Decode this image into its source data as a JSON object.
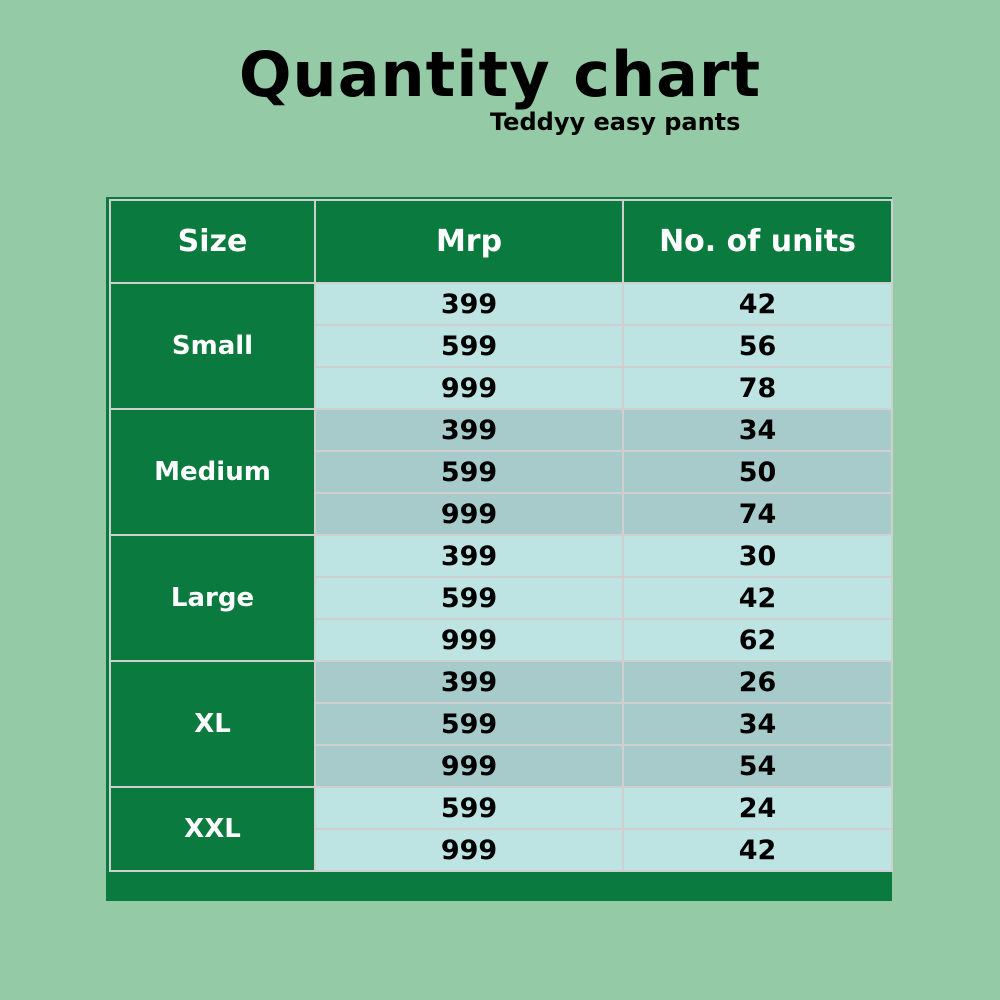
{
  "title": "Quantity chart",
  "subtitle": "Teddyy easy pants",
  "colors": {
    "background": "#94cba6",
    "header": "#0a7a3e",
    "row_light": "#bde3e2",
    "row_dark": "#a7cbca"
  },
  "chart_data": {
    "type": "table",
    "title": "Quantity chart",
    "subtitle": "Teddyy easy pants",
    "columns": [
      "Size",
      "Mrp",
      "No. of units"
    ],
    "groups": [
      {
        "size": "Small",
        "rows": [
          {
            "mrp": "399",
            "units": "42"
          },
          {
            "mrp": "599",
            "units": "56"
          },
          {
            "mrp": "999",
            "units": "78"
          }
        ]
      },
      {
        "size": "Medium",
        "rows": [
          {
            "mrp": "399",
            "units": "34"
          },
          {
            "mrp": "599",
            "units": "50"
          },
          {
            "mrp": "999",
            "units": "74"
          }
        ]
      },
      {
        "size": "Large",
        "rows": [
          {
            "mrp": "399",
            "units": "30"
          },
          {
            "mrp": "599",
            "units": "42"
          },
          {
            "mrp": "999",
            "units": "62"
          }
        ]
      },
      {
        "size": "XL",
        "rows": [
          {
            "mrp": "399",
            "units": "26"
          },
          {
            "mrp": "599",
            "units": "34"
          },
          {
            "mrp": "999",
            "units": "54"
          }
        ]
      },
      {
        "size": "XXL",
        "rows": [
          {
            "mrp": "599",
            "units": "24"
          },
          {
            "mrp": "999",
            "units": "42"
          }
        ]
      }
    ]
  }
}
